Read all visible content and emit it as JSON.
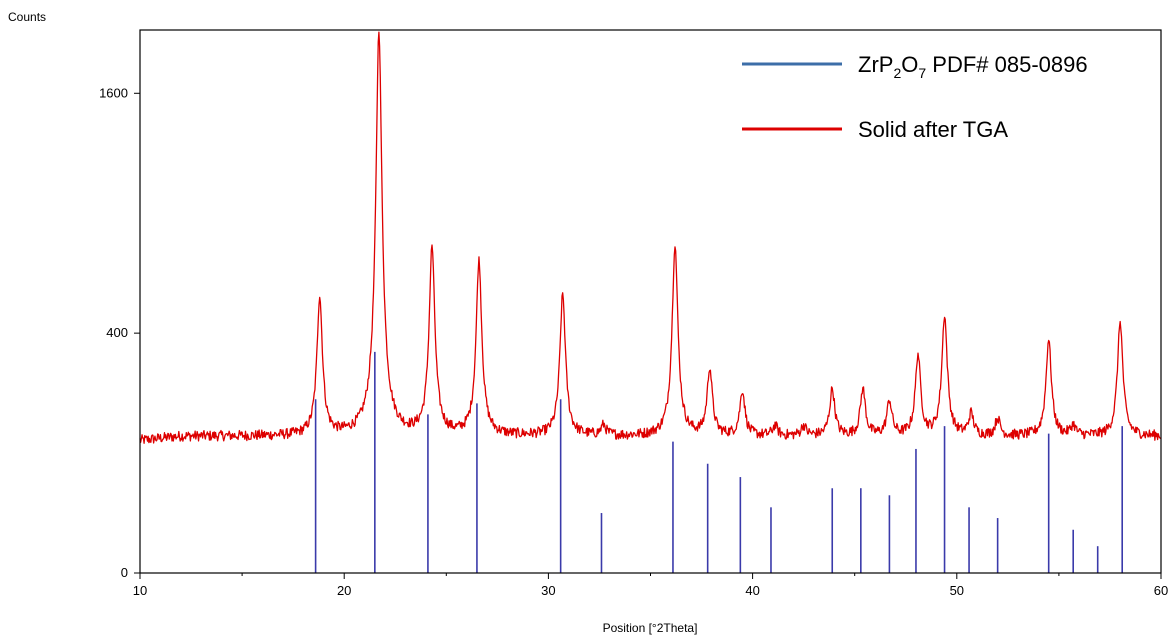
{
  "chart_data": {
    "type": "line",
    "ylabel": "Counts",
    "xlabel": "Position [°2Theta]",
    "xlim": [
      10,
      60
    ],
    "xticks": [
      10,
      20,
      30,
      40,
      50,
      60
    ],
    "yticks": [
      {
        "value": 0,
        "label": "0"
      },
      {
        "value": 400,
        "label": "400"
      },
      {
        "value": 1600,
        "label": "1600"
      }
    ],
    "y_scale": "sqrt",
    "ylim": [
      0,
      2050
    ],
    "grid": false,
    "legend_position": "top-right",
    "series": [
      {
        "name": "Solid after TGA",
        "color": "#dd0000",
        "kind": "diffractogram",
        "baseline": 130,
        "noise_amplitude": 10,
        "peaks": [
          {
            "x": 18.8,
            "y": 530
          },
          {
            "x": 21.7,
            "y": 2050
          },
          {
            "x": 24.3,
            "y": 740
          },
          {
            "x": 26.6,
            "y": 680
          },
          {
            "x": 30.7,
            "y": 540
          },
          {
            "x": 32.7,
            "y": 150
          },
          {
            "x": 36.2,
            "y": 750
          },
          {
            "x": 37.9,
            "y": 290
          },
          {
            "x": 39.5,
            "y": 230
          },
          {
            "x": 41.1,
            "y": 150
          },
          {
            "x": 42.5,
            "y": 150
          },
          {
            "x": 43.9,
            "y": 235
          },
          {
            "x": 45.4,
            "y": 235
          },
          {
            "x": 46.7,
            "y": 205
          },
          {
            "x": 48.1,
            "y": 330
          },
          {
            "x": 49.4,
            "y": 460
          },
          {
            "x": 50.7,
            "y": 175
          },
          {
            "x": 52.0,
            "y": 165
          },
          {
            "x": 54.5,
            "y": 380
          },
          {
            "x": 55.7,
            "y": 150
          },
          {
            "x": 58.0,
            "y": 440
          }
        ]
      },
      {
        "name": "ZrP2O7 PDF# 085-0896",
        "color": "#3a3aaa",
        "kind": "reference-sticks",
        "sticks": [
          {
            "x": 18.6,
            "y": 210
          },
          {
            "x": 21.5,
            "y": 340
          },
          {
            "x": 24.1,
            "y": 175
          },
          {
            "x": 26.5,
            "y": 200
          },
          {
            "x": 30.6,
            "y": 210
          },
          {
            "x": 32.6,
            "y": 25
          },
          {
            "x": 36.1,
            "y": 120
          },
          {
            "x": 37.8,
            "y": 83
          },
          {
            "x": 39.4,
            "y": 64
          },
          {
            "x": 40.9,
            "y": 30
          },
          {
            "x": 43.9,
            "y": 50
          },
          {
            "x": 45.3,
            "y": 50
          },
          {
            "x": 46.7,
            "y": 42
          },
          {
            "x": 48.0,
            "y": 107
          },
          {
            "x": 49.4,
            "y": 150
          },
          {
            "x": 50.6,
            "y": 30
          },
          {
            "x": 52.0,
            "y": 21
          },
          {
            "x": 54.5,
            "y": 135
          },
          {
            "x": 55.7,
            "y": 13
          },
          {
            "x": 56.9,
            "y": 5
          },
          {
            "x": 58.1,
            "y": 150
          }
        ]
      }
    ],
    "legend": [
      {
        "series": 1,
        "label_main": "ZrP",
        "sub1": "2",
        "label_mid": "O",
        "sub2": "7",
        "label_tail": " PDF# 085-0896",
        "color": "#3c6ea8"
      },
      {
        "series": 0,
        "label": "Solid after TGA",
        "color": "#dd0000"
      }
    ]
  }
}
